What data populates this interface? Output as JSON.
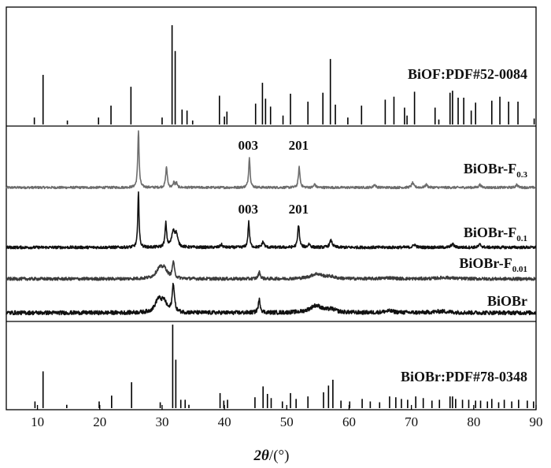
{
  "chart_data": {
    "type": "line",
    "xlabel_italic": "2θ",
    "xlabel_rest": "/(°)",
    "xlim": [
      5,
      90
    ],
    "xticks": [
      10,
      20,
      30,
      40,
      50,
      60,
      70,
      80,
      90
    ],
    "reference_top": {
      "label": "BiOF:PDF#52-0084",
      "peaks": [
        [
          9.5,
          0.07
        ],
        [
          10.9,
          0.5
        ],
        [
          14.8,
          0.04
        ],
        [
          19.8,
          0.07
        ],
        [
          21.8,
          0.19
        ],
        [
          25.0,
          0.38
        ],
        [
          30.0,
          0.07
        ],
        [
          31.6,
          1.0
        ],
        [
          32.1,
          0.74
        ],
        [
          33.2,
          0.15
        ],
        [
          34.0,
          0.14
        ],
        [
          34.9,
          0.04
        ],
        [
          39.2,
          0.29
        ],
        [
          40.0,
          0.08
        ],
        [
          40.4,
          0.13
        ],
        [
          45.0,
          0.21
        ],
        [
          46.1,
          0.42
        ],
        [
          46.6,
          0.26
        ],
        [
          47.4,
          0.18
        ],
        [
          49.4,
          0.09
        ],
        [
          50.6,
          0.31
        ],
        [
          53.4,
          0.23
        ],
        [
          55.8,
          0.32
        ],
        [
          57.0,
          0.66
        ],
        [
          57.8,
          0.2
        ],
        [
          59.8,
          0.07
        ],
        [
          62.0,
          0.19
        ],
        [
          65.8,
          0.25
        ],
        [
          67.2,
          0.28
        ],
        [
          68.9,
          0.17
        ],
        [
          69.3,
          0.09
        ],
        [
          70.5,
          0.33
        ],
        [
          73.8,
          0.17
        ],
        [
          74.4,
          0.05
        ],
        [
          76.2,
          0.32
        ],
        [
          76.6,
          0.34
        ],
        [
          77.5,
          0.27
        ],
        [
          78.4,
          0.27
        ],
        [
          79.6,
          0.14
        ],
        [
          80.3,
          0.22
        ],
        [
          82.9,
          0.24
        ],
        [
          84.2,
          0.28
        ],
        [
          85.6,
          0.23
        ],
        [
          87.1,
          0.23
        ],
        [
          89.7,
          0.06
        ]
      ]
    },
    "reference_bottom": {
      "label": "BiOBr:PDF#78-0348",
      "peaks": [
        [
          9.6,
          0.08
        ],
        [
          10.9,
          0.44
        ],
        [
          14.7,
          0.04
        ],
        [
          19.9,
          0.08
        ],
        [
          21.9,
          0.15
        ],
        [
          25.1,
          0.31
        ],
        [
          29.7,
          0.07
        ],
        [
          31.7,
          1.0
        ],
        [
          32.2,
          0.58
        ],
        [
          33.0,
          0.1
        ],
        [
          33.7,
          0.1
        ],
        [
          34.3,
          0.04
        ],
        [
          39.3,
          0.18
        ],
        [
          39.9,
          0.09
        ],
        [
          40.5,
          0.1
        ],
        [
          44.9,
          0.13
        ],
        [
          46.2,
          0.26
        ],
        [
          46.9,
          0.17
        ],
        [
          47.5,
          0.12
        ],
        [
          49.3,
          0.08
        ],
        [
          50.6,
          0.18
        ],
        [
          51.5,
          0.11
        ],
        [
          53.4,
          0.14
        ],
        [
          55.9,
          0.19
        ],
        [
          56.7,
          0.27
        ],
        [
          57.4,
          0.34
        ],
        [
          58.7,
          0.09
        ],
        [
          60.1,
          0.08
        ],
        [
          62.1,
          0.11
        ],
        [
          63.4,
          0.08
        ],
        [
          64.9,
          0.07
        ],
        [
          66.5,
          0.14
        ],
        [
          67.5,
          0.13
        ],
        [
          68.4,
          0.11
        ],
        [
          69.4,
          0.1
        ],
        [
          70.7,
          0.14
        ],
        [
          71.9,
          0.12
        ],
        [
          73.3,
          0.09
        ],
        [
          74.5,
          0.1
        ],
        [
          76.2,
          0.14
        ],
        [
          76.6,
          0.14
        ],
        [
          77.1,
          0.11
        ],
        [
          78.2,
          0.1
        ],
        [
          79.2,
          0.1
        ],
        [
          80.3,
          0.09
        ],
        [
          81.1,
          0.09
        ],
        [
          82.2,
          0.08
        ],
        [
          82.9,
          0.11
        ],
        [
          84.0,
          0.07
        ],
        [
          84.9,
          0.1
        ],
        [
          86.1,
          0.08
        ],
        [
          87.2,
          0.1
        ],
        [
          88.6,
          0.09
        ],
        [
          89.6,
          0.08
        ]
      ]
    },
    "series": [
      {
        "label_main": "BiOBr-F",
        "label_sub": "0.3",
        "color": "#6d6d6d",
        "baseline_noise": 0.02,
        "peaks": [
          [
            26.2,
            1.0,
            0.13
          ],
          [
            30.7,
            0.36,
            0.15
          ],
          [
            31.9,
            0.1,
            0.12
          ],
          [
            32.3,
            0.09,
            0.12
          ],
          [
            44.0,
            0.52,
            0.14
          ],
          [
            52.0,
            0.35,
            0.15
          ],
          [
            54.5,
            0.06,
            0.15
          ],
          [
            64.1,
            0.05,
            0.2
          ],
          [
            70.2,
            0.08,
            0.2
          ],
          [
            72.4,
            0.05,
            0.2
          ],
          [
            81.0,
            0.05,
            0.2
          ],
          [
            86.9,
            0.05,
            0.2
          ]
        ],
        "annotations": [
          [
            "003",
            43.8
          ],
          [
            "201",
            51.9
          ]
        ]
      },
      {
        "label_main": "BiOBr-F",
        "label_sub": "0.1",
        "color": "#111111",
        "baseline_noise": 0.025,
        "peaks": [
          [
            26.2,
            1.0,
            0.12
          ],
          [
            30.6,
            0.42,
            0.15
          ],
          [
            31.8,
            0.28,
            0.3
          ],
          [
            32.3,
            0.2,
            0.25
          ],
          [
            39.5,
            0.05,
            0.2
          ],
          [
            43.9,
            0.45,
            0.14
          ],
          [
            46.2,
            0.1,
            0.2
          ],
          [
            51.9,
            0.4,
            0.16
          ],
          [
            53.6,
            0.06,
            0.2
          ],
          [
            57.1,
            0.12,
            0.25
          ],
          [
            70.5,
            0.05,
            0.25
          ],
          [
            76.6,
            0.06,
            0.25
          ],
          [
            81.0,
            0.05,
            0.25
          ]
        ],
        "annotations": [
          [
            "003",
            43.8
          ],
          [
            "201",
            51.9
          ]
        ]
      },
      {
        "label_main": "BiOBr-F",
        "label_sub": "0.01",
        "color": "#3c3c3c",
        "baseline_noise": 0.07,
        "peaks": [
          [
            29.6,
            0.45,
            0.7
          ],
          [
            30.4,
            0.35,
            0.5
          ],
          [
            31.8,
            0.75,
            0.18
          ],
          [
            45.6,
            0.3,
            0.2
          ],
          [
            54.8,
            0.22,
            1.2
          ],
          [
            57.0,
            0.08,
            0.8
          ],
          [
            66.3,
            0.05,
            1.0
          ],
          [
            75.4,
            0.06,
            1.5
          ]
        ],
        "annotations": []
      },
      {
        "label_main": "BiOBr",
        "label_sub": "",
        "color": "#111111",
        "baseline_noise": 0.07,
        "peaks": [
          [
            29.4,
            0.45,
            0.6
          ],
          [
            30.3,
            0.35,
            0.5
          ],
          [
            31.8,
            1.0,
            0.2
          ],
          [
            45.6,
            0.45,
            0.2
          ],
          [
            54.7,
            0.25,
            1.2
          ],
          [
            57.2,
            0.1,
            0.8
          ],
          [
            66.4,
            0.06,
            1.0
          ],
          [
            74.9,
            0.05,
            1.5
          ]
        ],
        "annotations": []
      }
    ]
  }
}
